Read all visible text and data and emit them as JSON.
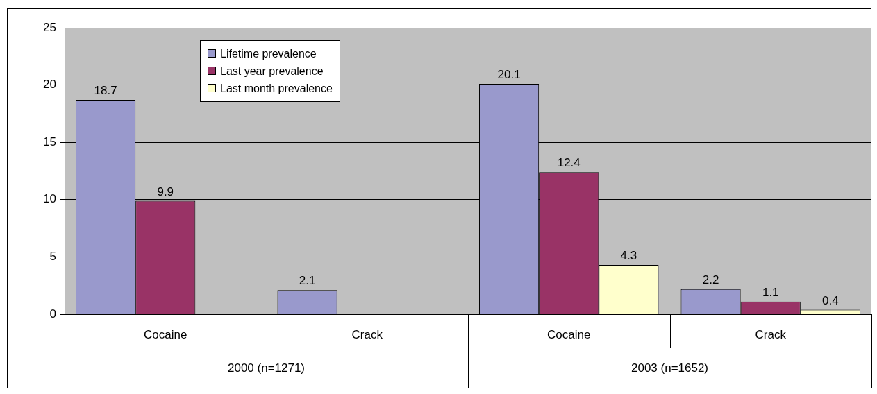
{
  "chart_data": {
    "type": "bar",
    "categories": [
      "Cocaine",
      "Crack",
      "Cocaine",
      "Crack"
    ],
    "series": [
      {
        "name": "Lifetime prevalence",
        "color": "#9999cc",
        "values": [
          18.7,
          2.1,
          20.1,
          2.2
        ]
      },
      {
        "name": "Last year prevalence",
        "color": "#993366",
        "values": [
          9.9,
          null,
          12.4,
          1.1
        ]
      },
      {
        "name": "Last month prevalence",
        "color": "#ffffcc",
        "values": [
          null,
          null,
          4.3,
          0.4
        ]
      }
    ],
    "annotations": [
      "2000 (n=1271)",
      "2003 (n=1652)"
    ],
    "ylim": [
      0,
      25
    ],
    "yticks": [
      0,
      5,
      10,
      15,
      20,
      25
    ],
    "grid": "y",
    "legend": "top left",
    "data_labels": true
  }
}
